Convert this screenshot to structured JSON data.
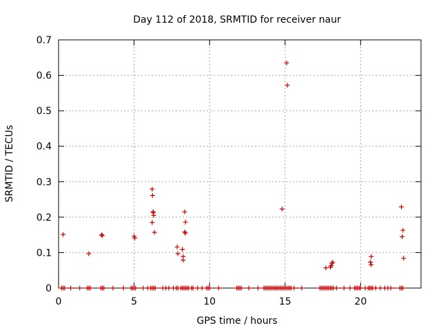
{
  "chart_data": {
    "type": "scatter",
    "title": "Day 112 of 2018, SRMTID for receiver naur",
    "xlabel": "GPS time / hours",
    "ylabel": "SRMTID / TECUs",
    "xlim": [
      0,
      24
    ],
    "ylim": [
      0,
      0.7
    ],
    "x_ticks": [
      "0",
      "5",
      "10",
      "15",
      "20"
    ],
    "x_tick_values": [
      0,
      5,
      10,
      15,
      20
    ],
    "y_ticks": [
      "0",
      "0.1",
      "0.2",
      "0.3",
      "0.4",
      "0.5",
      "0.6",
      "0.7"
    ],
    "y_tick_values": [
      0,
      0.1,
      0.2,
      0.3,
      0.4,
      0.5,
      0.6,
      0.7
    ],
    "grid": true,
    "legend": "none",
    "marker": "+",
    "series_color": "#cc0000",
    "points": [
      [
        0.3,
        0.151
      ],
      [
        2.0,
        0.097
      ],
      [
        2.85,
        0.15
      ],
      [
        2.9,
        0.148
      ],
      [
        5.0,
        0.146
      ],
      [
        5.05,
        0.141
      ],
      [
        6.2,
        0.279
      ],
      [
        6.22,
        0.261
      ],
      [
        6.25,
        0.215
      ],
      [
        6.28,
        0.213
      ],
      [
        6.3,
        0.205
      ],
      [
        6.2,
        0.185
      ],
      [
        6.35,
        0.157
      ],
      [
        7.85,
        0.116
      ],
      [
        7.9,
        0.097
      ],
      [
        8.2,
        0.109
      ],
      [
        8.25,
        0.089
      ],
      [
        8.25,
        0.079
      ],
      [
        8.35,
        0.215
      ],
      [
        8.4,
        0.186
      ],
      [
        8.35,
        0.158
      ],
      [
        8.4,
        0.155
      ],
      [
        14.8,
        0.223
      ],
      [
        15.1,
        0.635
      ],
      [
        15.15,
        0.572
      ],
      [
        17.7,
        0.057
      ],
      [
        18.0,
        0.059
      ],
      [
        18.05,
        0.063
      ],
      [
        18.1,
        0.069
      ],
      [
        18.15,
        0.073
      ],
      [
        20.7,
        0.089
      ],
      [
        20.65,
        0.073
      ],
      [
        20.7,
        0.066
      ],
      [
        22.7,
        0.229
      ],
      [
        22.75,
        0.145
      ],
      [
        22.8,
        0.163
      ],
      [
        22.85,
        0.084
      ],
      [
        0.2,
        0
      ],
      [
        0.3,
        0
      ],
      [
        0.4,
        0
      ],
      [
        0.8,
        0
      ],
      [
        1.4,
        0
      ],
      [
        1.9,
        0
      ],
      [
        2.0,
        0
      ],
      [
        2.1,
        0
      ],
      [
        2.8,
        0
      ],
      [
        2.9,
        0
      ],
      [
        3.0,
        0
      ],
      [
        3.6,
        0
      ],
      [
        4.3,
        0
      ],
      [
        4.8,
        0
      ],
      [
        4.9,
        0
      ],
      [
        5.0,
        0
      ],
      [
        5.1,
        0
      ],
      [
        5.6,
        0
      ],
      [
        5.9,
        0
      ],
      [
        6.1,
        0
      ],
      [
        6.2,
        0
      ],
      [
        6.3,
        0
      ],
      [
        6.4,
        0
      ],
      [
        6.9,
        0
      ],
      [
        7.1,
        0
      ],
      [
        7.3,
        0
      ],
      [
        7.6,
        0
      ],
      [
        7.8,
        0
      ],
      [
        7.9,
        0
      ],
      [
        8.1,
        0
      ],
      [
        8.2,
        0
      ],
      [
        8.3,
        0
      ],
      [
        8.4,
        0
      ],
      [
        8.5,
        0
      ],
      [
        8.6,
        0
      ],
      [
        8.8,
        0
      ],
      [
        8.9,
        0
      ],
      [
        9.2,
        0
      ],
      [
        9.5,
        0
      ],
      [
        9.8,
        0
      ],
      [
        9.9,
        0
      ],
      [
        10.0,
        0
      ],
      [
        10.6,
        0
      ],
      [
        11.8,
        0
      ],
      [
        11.9,
        0
      ],
      [
        12.0,
        0
      ],
      [
        12.1,
        0
      ],
      [
        12.6,
        0
      ],
      [
        13.2,
        0
      ],
      [
        13.6,
        0
      ],
      [
        13.7,
        0
      ],
      [
        13.8,
        0
      ],
      [
        13.9,
        0
      ],
      [
        14.0,
        0
      ],
      [
        14.1,
        0
      ],
      [
        14.2,
        0
      ],
      [
        14.3,
        0
      ],
      [
        14.4,
        0
      ],
      [
        14.5,
        0
      ],
      [
        14.6,
        0
      ],
      [
        14.7,
        0
      ],
      [
        14.8,
        0
      ],
      [
        14.9,
        0
      ],
      [
        15.0,
        0
      ],
      [
        15.1,
        0
      ],
      [
        15.2,
        0
      ],
      [
        15.3,
        0
      ],
      [
        15.4,
        0
      ],
      [
        15.6,
        0
      ],
      [
        16.1,
        0
      ],
      [
        17.3,
        0
      ],
      [
        17.4,
        0
      ],
      [
        17.5,
        0
      ],
      [
        17.6,
        0
      ],
      [
        17.7,
        0
      ],
      [
        17.8,
        0
      ],
      [
        17.9,
        0
      ],
      [
        18.0,
        0
      ],
      [
        18.1,
        0
      ],
      [
        18.2,
        0
      ],
      [
        18.4,
        0
      ],
      [
        18.9,
        0
      ],
      [
        19.3,
        0
      ],
      [
        19.6,
        0
      ],
      [
        19.7,
        0
      ],
      [
        19.8,
        0
      ],
      [
        19.9,
        0
      ],
      [
        20.0,
        0
      ],
      [
        20.3,
        0
      ],
      [
        20.5,
        0
      ],
      [
        20.6,
        0
      ],
      [
        20.7,
        0
      ],
      [
        20.8,
        0
      ],
      [
        21.0,
        0
      ],
      [
        21.3,
        0
      ],
      [
        21.6,
        0
      ],
      [
        21.8,
        0
      ],
      [
        22.0,
        0
      ],
      [
        22.6,
        0
      ],
      [
        22.7,
        0
      ],
      [
        22.8,
        0
      ]
    ]
  }
}
